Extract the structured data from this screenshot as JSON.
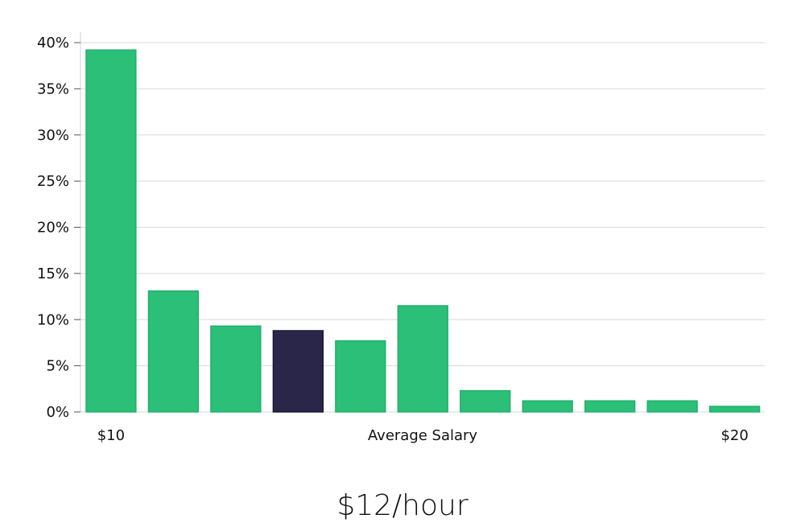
{
  "chart_data": {
    "type": "bar",
    "categories": [
      "$10",
      "",
      "",
      "",
      "",
      "Average Salary",
      "",
      "",
      "",
      "",
      "$20"
    ],
    "values": [
      39.2,
      13.1,
      9.3,
      8.8,
      7.7,
      11.5,
      2.3,
      1.2,
      1.2,
      1.2,
      0.6
    ],
    "highlight_index": 3,
    "ylim": [
      0,
      40
    ],
    "yticks": [
      "0%",
      "5%",
      "10%",
      "15%",
      "20%",
      "25%",
      "30%",
      "35%",
      "40%"
    ],
    "x_labels": {
      "left": "$10",
      "center": "Average Salary",
      "right": "$20"
    },
    "grid": true,
    "colors": {
      "bar": "#2bbf78",
      "highlight": "#29264a"
    }
  },
  "salary_label": "$12/hour"
}
